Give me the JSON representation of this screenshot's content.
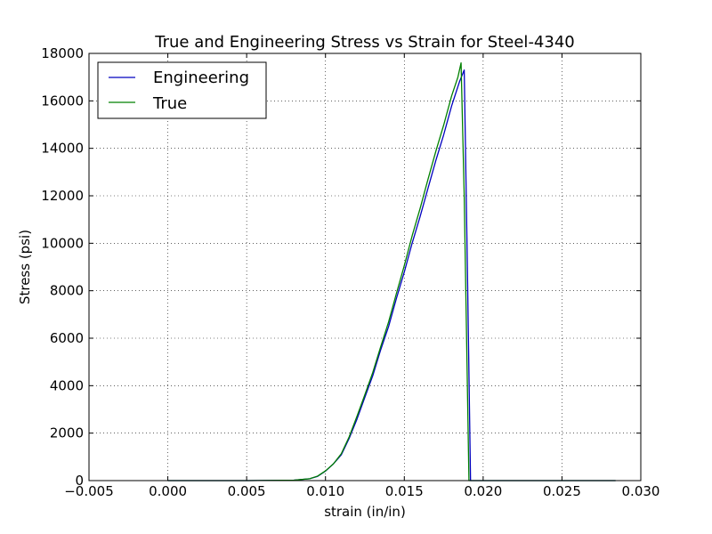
{
  "chart_data": {
    "type": "line",
    "title": "True and Engineering Stress vs Strain for Steel-4340",
    "xlabel": "strain (in/in)",
    "ylabel": "Stress (psi)",
    "xlim": [
      -0.005,
      0.03
    ],
    "ylim": [
      0,
      18000
    ],
    "xticks": [
      -0.005,
      0.0,
      0.005,
      0.01,
      0.015,
      0.02,
      0.025,
      0.03
    ],
    "xtick_labels": [
      "−0.005",
      "0.000",
      "0.005",
      "0.010",
      "0.015",
      "0.020",
      "0.025",
      "0.030"
    ],
    "yticks": [
      0,
      2000,
      4000,
      6000,
      8000,
      10000,
      12000,
      14000,
      16000,
      18000
    ],
    "ytick_labels": [
      "0",
      "2000",
      "4000",
      "6000",
      "8000",
      "10000",
      "12000",
      "14000",
      "16000",
      "18000"
    ],
    "grid": true,
    "legend_position": "top-left",
    "series": [
      {
        "name": "Engineering",
        "color": "#0000bf",
        "x": [
          0.0,
          0.005,
          0.008,
          0.009,
          0.0095,
          0.01,
          0.0105,
          0.011,
          0.0115,
          0.012,
          0.0125,
          0.013,
          0.0135,
          0.014,
          0.0145,
          0.015,
          0.0155,
          0.016,
          0.0165,
          0.017,
          0.0175,
          0.018,
          0.0185,
          0.0188,
          0.019,
          0.0192,
          0.02,
          0.025,
          0.0284
        ],
        "y": [
          0,
          0,
          20,
          80,
          180,
          400,
          700,
          1100,
          1800,
          2600,
          3500,
          4400,
          5500,
          6500,
          7700,
          8800,
          10000,
          11100,
          12300,
          13500,
          14600,
          15800,
          16800,
          17300,
          9000,
          0,
          0,
          0,
          0
        ]
      },
      {
        "name": "True",
        "color": "#008000",
        "x": [
          0.0,
          0.005,
          0.008,
          0.009,
          0.0095,
          0.01,
          0.0105,
          0.011,
          0.0115,
          0.012,
          0.0125,
          0.013,
          0.0135,
          0.014,
          0.0145,
          0.015,
          0.0155,
          0.016,
          0.0165,
          0.017,
          0.0175,
          0.018,
          0.0184,
          0.0186,
          0.0188,
          0.0191,
          0.02,
          0.025,
          0.0284
        ],
        "y": [
          0,
          0,
          20,
          80,
          190,
          410,
          720,
          1150,
          1850,
          2700,
          3600,
          4550,
          5650,
          6700,
          7900,
          9050,
          10300,
          11450,
          12700,
          13900,
          15000,
          16200,
          17000,
          17600,
          12000,
          0,
          0,
          0,
          0
        ]
      }
    ]
  }
}
